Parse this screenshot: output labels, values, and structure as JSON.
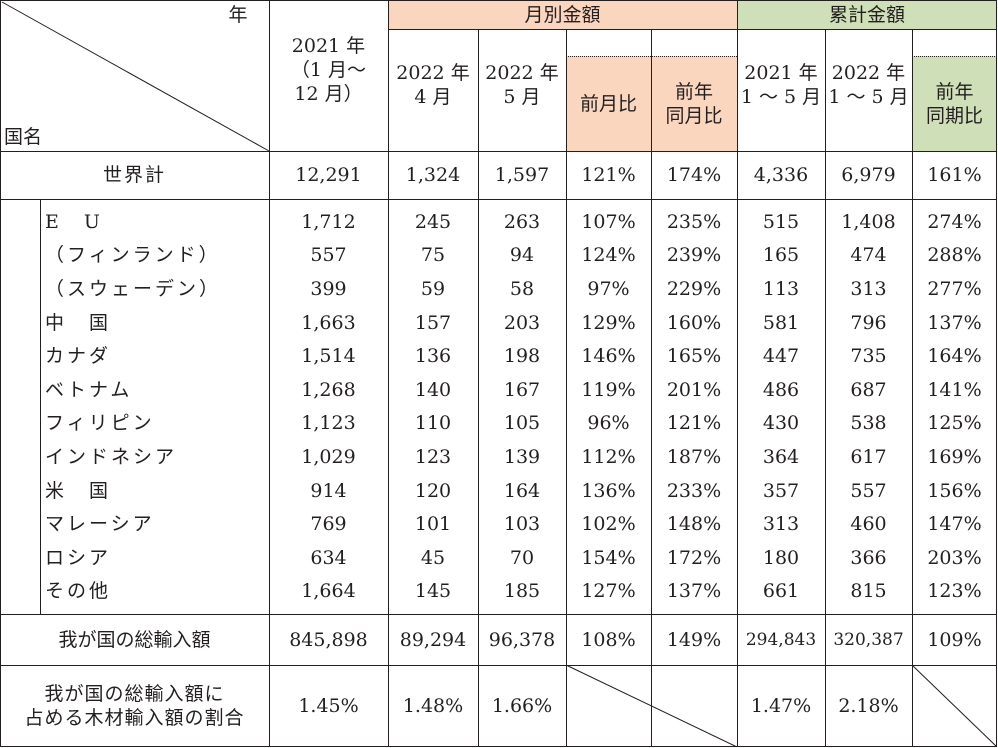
{
  "header": {
    "year_label": "年",
    "country_label": "国名",
    "col_2021": "2021 年\n（1 月～\n12 月）",
    "monthly_group": "月別金額",
    "cumulative_group": "累計金額",
    "col_2022_apr": "2022 年\n4 月",
    "col_2022_may": "2022 年\n5 月",
    "col_mom": "前月比",
    "col_yoy": "前年\n同月比",
    "col_cum_2021": "2021 年\n1 ～ 5 月",
    "col_cum_2022": "2022 年\n1 ～ 5 月",
    "col_cum_yoy": "前年\n同期比"
  },
  "colors": {
    "monthly_header": "#fbd6bf",
    "cumulative_header": "#cfe0b9",
    "border": "#231f20"
  },
  "world_total": {
    "label": "世界計",
    "values": [
      "12,291",
      "1,324",
      "1,597",
      "121%",
      "174%",
      "4,336",
      "6,979",
      "161%"
    ]
  },
  "countries": [
    {
      "name": "E　U",
      "values": [
        "1,712",
        "245",
        "263",
        "107%",
        "235%",
        "515",
        "1,408",
        "274%"
      ]
    },
    {
      "name": "（フィンランド）",
      "values": [
        "557",
        "75",
        "94",
        "124%",
        "239%",
        "165",
        "474",
        "288%"
      ]
    },
    {
      "name": "（スウェーデン）",
      "values": [
        "399",
        "59",
        "58",
        "97%",
        "229%",
        "113",
        "313",
        "277%"
      ]
    },
    {
      "name": "中　国",
      "values": [
        "1,663",
        "157",
        "203",
        "129%",
        "160%",
        "581",
        "796",
        "137%"
      ]
    },
    {
      "name": "カナダ",
      "values": [
        "1,514",
        "136",
        "198",
        "146%",
        "165%",
        "447",
        "735",
        "164%"
      ]
    },
    {
      "name": "ベトナム",
      "values": [
        "1,268",
        "140",
        "167",
        "119%",
        "201%",
        "486",
        "687",
        "141%"
      ]
    },
    {
      "name": "フィリピン",
      "values": [
        "1,123",
        "110",
        "105",
        "96%",
        "121%",
        "430",
        "538",
        "125%"
      ]
    },
    {
      "name": "インドネシア",
      "values": [
        "1,029",
        "123",
        "139",
        "112%",
        "187%",
        "364",
        "617",
        "169%"
      ]
    },
    {
      "name": "米　国",
      "values": [
        "914",
        "120",
        "164",
        "136%",
        "233%",
        "357",
        "557",
        "156%"
      ]
    },
    {
      "name": "マレーシア",
      "values": [
        "769",
        "101",
        "103",
        "102%",
        "148%",
        "313",
        "460",
        "147%"
      ]
    },
    {
      "name": "ロシア",
      "values": [
        "634",
        "45",
        "70",
        "154%",
        "172%",
        "180",
        "366",
        "203%"
      ]
    },
    {
      "name": "その他",
      "values": [
        "1,664",
        "145",
        "185",
        "127%",
        "137%",
        "661",
        "815",
        "123%"
      ]
    }
  ],
  "total_imports": {
    "label": "我が国の総輸入額",
    "values": [
      "845,898",
      "89,294",
      "96,378",
      "108%",
      "149%",
      "294,843",
      "320,387",
      "109%"
    ]
  },
  "share": {
    "label": "我が国の総輸入額に\n占める木材輸入額の割合",
    "values": [
      "1.45%",
      "1.48%",
      "1.66%",
      "",
      "",
      "1.47%",
      "2.18%",
      ""
    ]
  }
}
